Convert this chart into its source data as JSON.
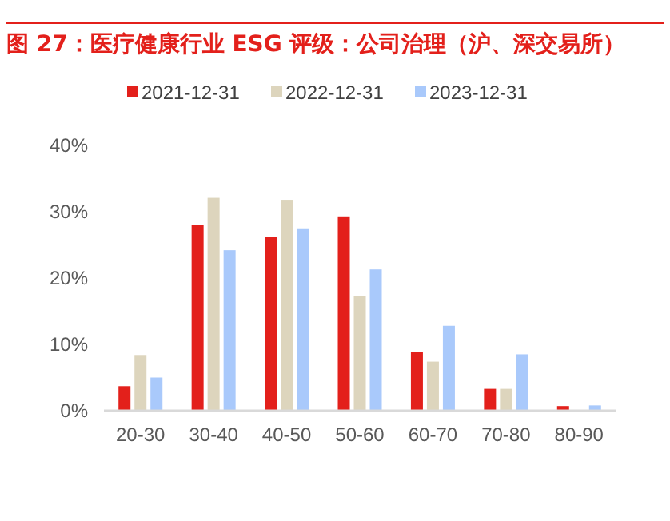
{
  "chart_data": {
    "type": "bar",
    "title": "图 27：医疗健康行业 ESG 评级：公司治理（沪、深交易所）",
    "categories": [
      "20-30",
      "30-40",
      "40-50",
      "50-60",
      "60-70",
      "70-80",
      "80-90"
    ],
    "series": [
      {
        "name": "2021-12-31",
        "color": "#e3201b",
        "values": [
          3.7,
          28.0,
          26.2,
          29.3,
          8.8,
          3.3,
          0.7
        ]
      },
      {
        "name": "2022-12-31",
        "color": "#ddd5bd",
        "values": [
          8.4,
          32.1,
          31.8,
          17.3,
          7.4,
          3.3,
          0
        ]
      },
      {
        "name": "2023-12-31",
        "color": "#a9c9fb",
        "values": [
          5.0,
          24.2,
          27.5,
          21.3,
          12.8,
          8.5,
          0.8
        ]
      }
    ],
    "ylim": [
      0,
      40
    ],
    "yticks": [
      {
        "value": 0,
        "label": "0%"
      },
      {
        "value": 10,
        "label": "10%"
      },
      {
        "value": 20,
        "label": "20%"
      },
      {
        "value": 30,
        "label": "30%"
      },
      {
        "value": 40,
        "label": "40%"
      }
    ],
    "grid": false,
    "legend": "top"
  }
}
